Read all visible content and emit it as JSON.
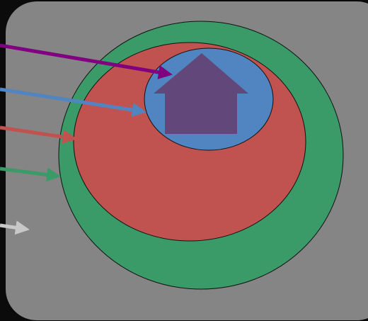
{
  "diagram": {
    "background_color": "#0b0b0b",
    "panel_color": "#858585",
    "regions": [
      {
        "name": "green",
        "color": "#3a9a68"
      },
      {
        "name": "red",
        "color": "#c0534f"
      },
      {
        "name": "blue",
        "color": "#5085c2"
      }
    ],
    "house_icon": {
      "color": "#62487a"
    },
    "arrows": [
      {
        "color": "#800080",
        "target": "house"
      },
      {
        "color": "#5085c2",
        "target": "blue"
      },
      {
        "color": "#c0534f",
        "target": "red"
      },
      {
        "color": "#3a9a68",
        "target": "green"
      },
      {
        "color": "#c8c8c8",
        "target": "panel"
      }
    ]
  }
}
